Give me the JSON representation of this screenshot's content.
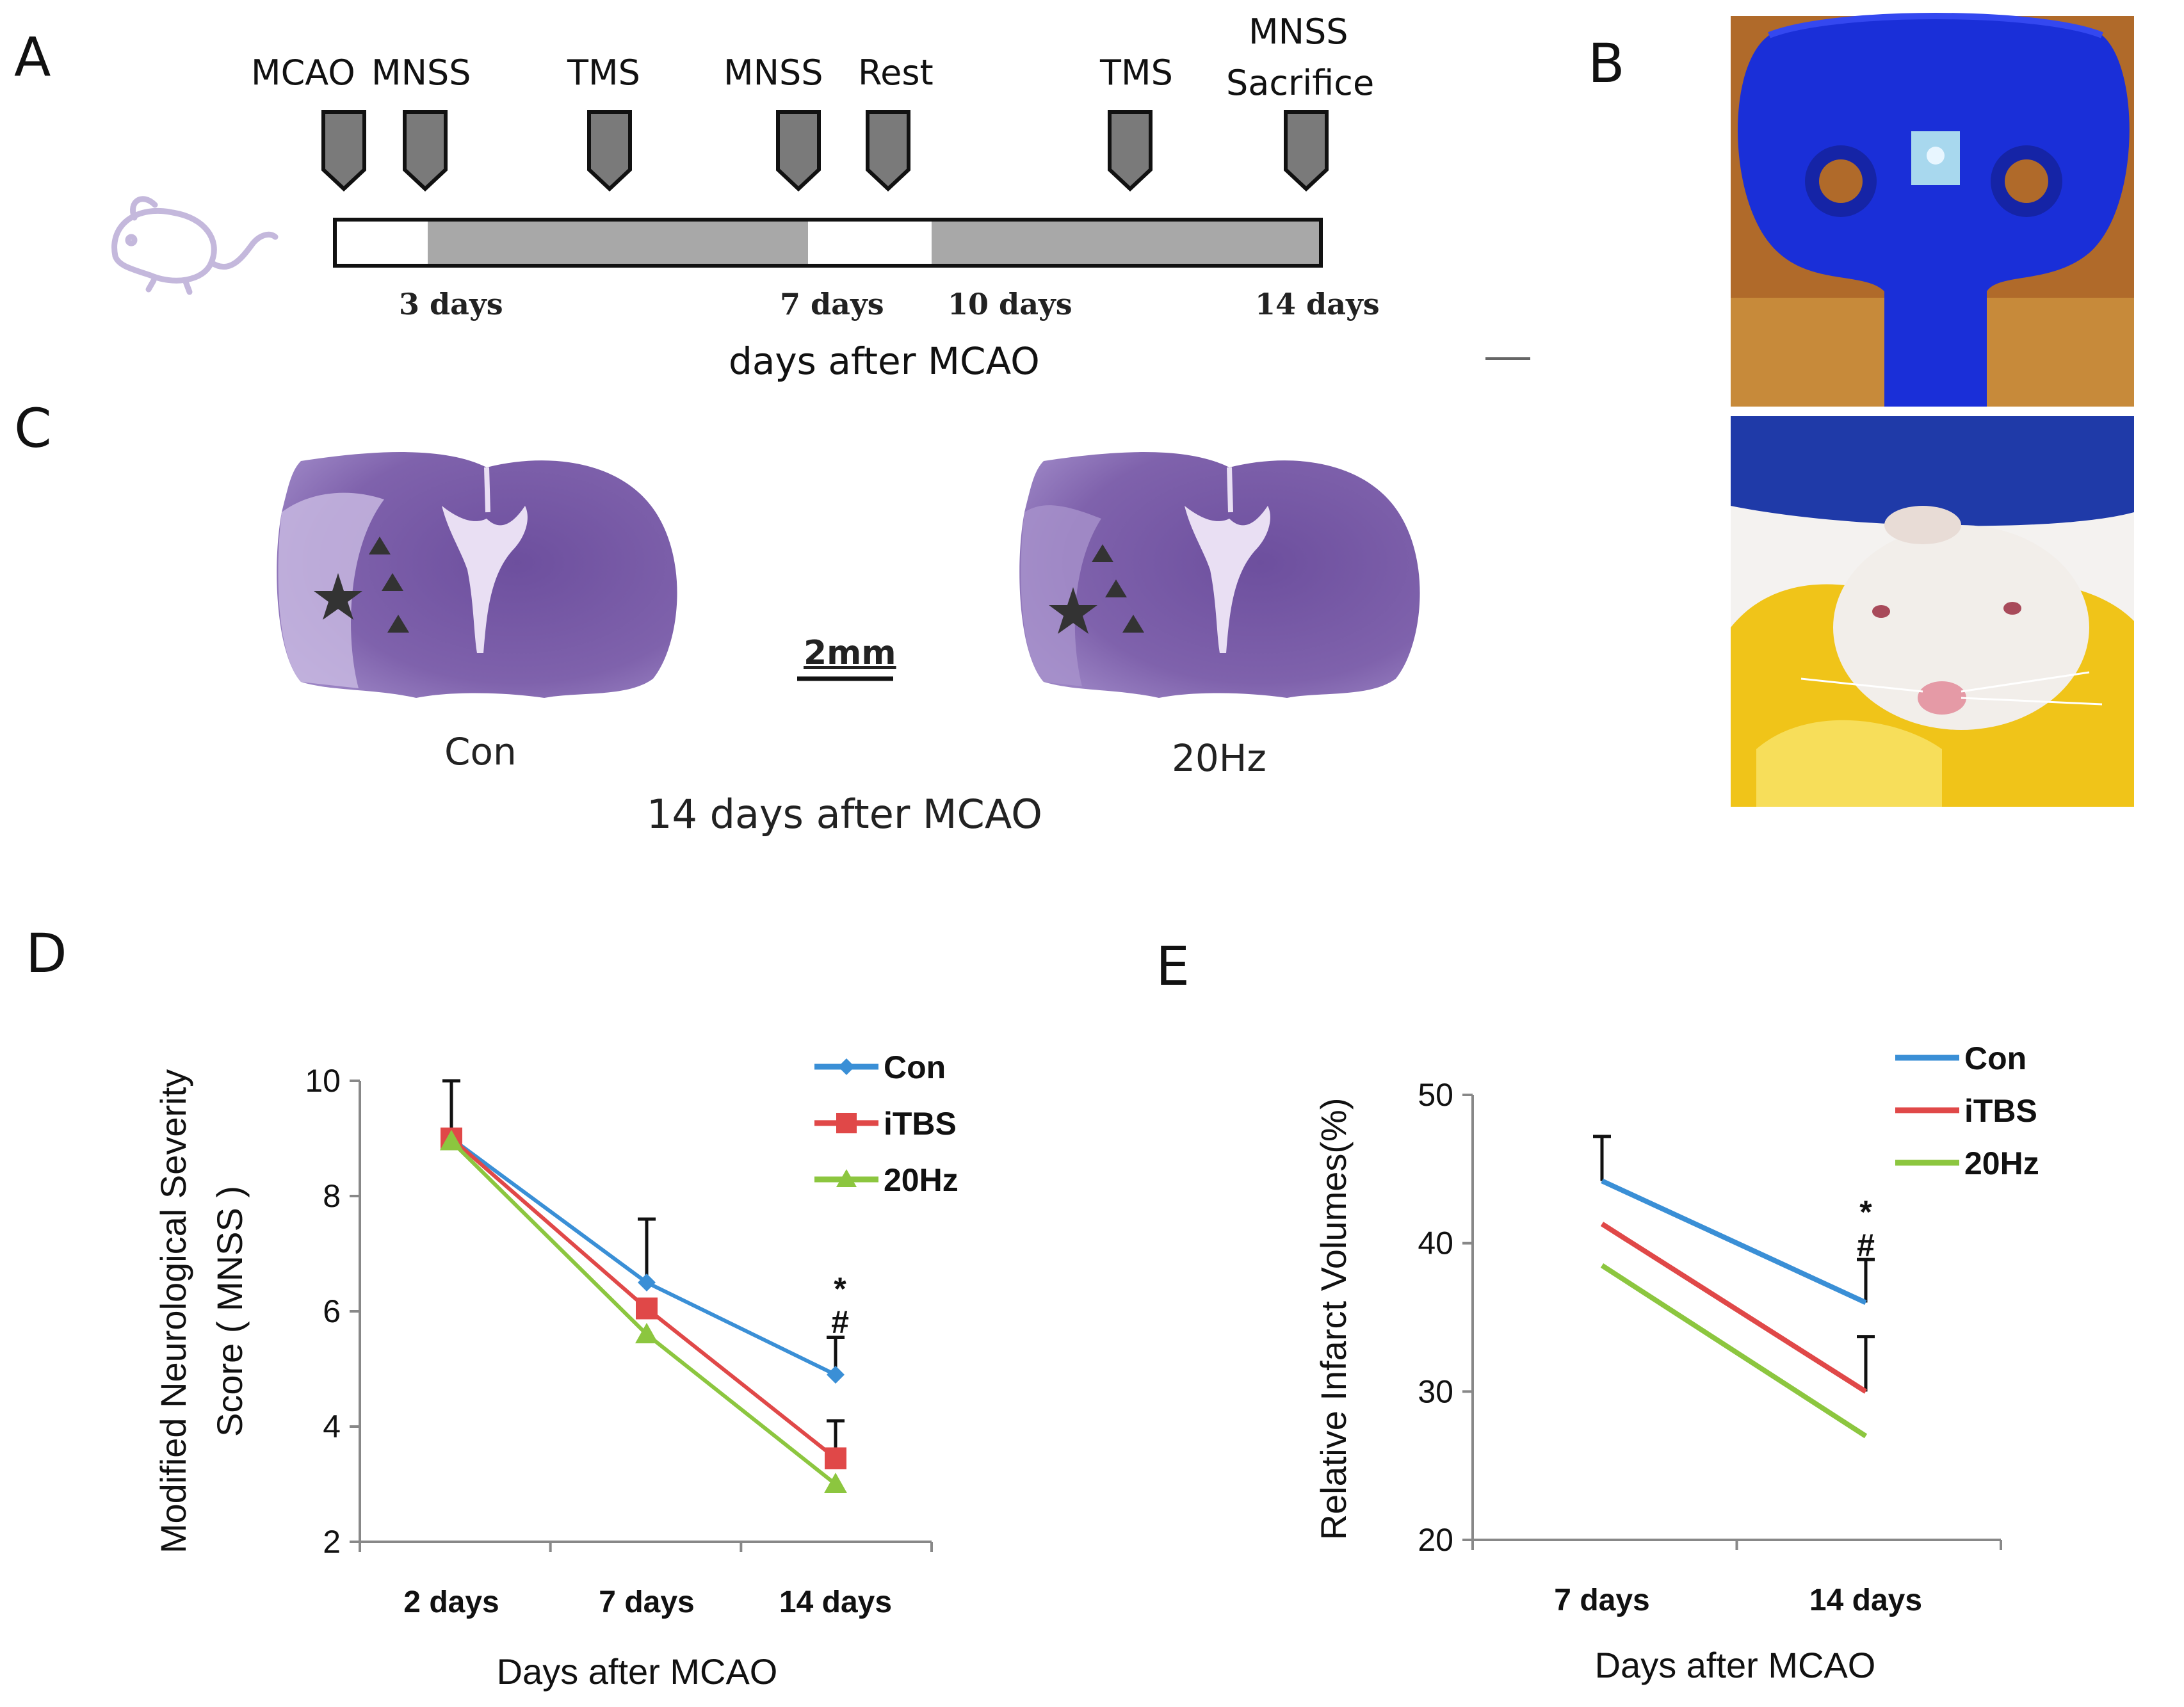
{
  "panels": {
    "a": "A",
    "b": "B",
    "c": "C",
    "d": "D",
    "e": "E"
  },
  "timeline": {
    "events": [
      "MCAO",
      "MNSS",
      "TMS",
      "MNSS",
      "Rest",
      "TMS",
      "MNSS",
      "Sacrifice"
    ],
    "days": [
      "3 days",
      "7 days",
      "10 days",
      "14 days"
    ],
    "axis_label": "days after MCAO"
  },
  "histology": {
    "con_label": "Con",
    "hz_label": "20Hz",
    "scale_bar": "2mm",
    "caption": "14 days after MCAO"
  },
  "colors": {
    "con": "#3a8fd6",
    "itbs": "#e04848",
    "hz20": "#8cc63f",
    "stain": "#7a5aa8"
  },
  "chart_data": [
    {
      "type": "line",
      "panel": "D",
      "categories": [
        "2 days",
        "7 days",
        "14 days"
      ],
      "series": [
        {
          "name": "Con",
          "values": [
            9.0,
            6.5,
            4.9
          ],
          "errors": [
            1.0,
            1.1,
            0.65
          ],
          "marker": "diamond"
        },
        {
          "name": "iTBS",
          "values": [
            9.0,
            6.05,
            3.45
          ],
          "errors": [
            0,
            0,
            0.65
          ],
          "marker": "square"
        },
        {
          "name": "20Hz",
          "values": [
            8.95,
            5.6,
            3.0
          ],
          "errors": [
            0,
            0,
            0
          ],
          "marker": "triangle"
        }
      ],
      "ylabel_line1": "Modified Neurological Severity",
      "ylabel_line2": "Score ( MNSS )",
      "xlabel": "Days after MCAO",
      "ylim": [
        2,
        10
      ],
      "yticks": [
        "2",
        "4",
        "6",
        "8",
        "10"
      ],
      "yticks_values": [
        2,
        4,
        6,
        8,
        10
      ],
      "significance": [
        "*",
        "#"
      ],
      "legend": "top-right"
    },
    {
      "type": "line",
      "panel": "E",
      "categories": [
        "7 days",
        "14 days"
      ],
      "series": [
        {
          "name": "Con",
          "values": [
            44.2,
            36.0
          ],
          "errors": [
            3.0,
            2.9
          ]
        },
        {
          "name": "iTBS",
          "values": [
            41.3,
            30.0
          ],
          "errors": [
            0,
            3.7
          ]
        },
        {
          "name": "20Hz",
          "values": [
            38.5,
            27.0
          ],
          "errors": [
            0,
            0
          ]
        }
      ],
      "ylabel": "Relative Infarct Volumes(%)",
      "xlabel": "Days after MCAO",
      "ylim": [
        20,
        50
      ],
      "yticks": [
        "20",
        "30",
        "40",
        "50"
      ],
      "yticks_values": [
        20,
        30,
        40,
        50
      ],
      "significance": [
        "*",
        "#"
      ],
      "legend": "top-right"
    }
  ]
}
